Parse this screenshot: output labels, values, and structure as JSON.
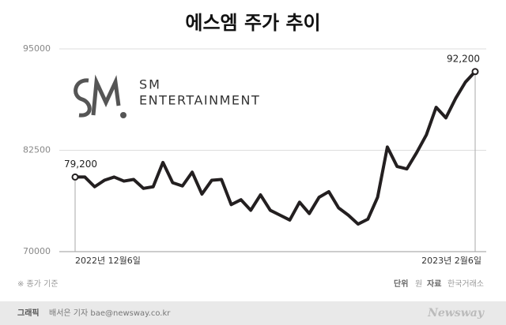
{
  "chart_data": {
    "type": "line",
    "title": "에스엠 주가 추이",
    "categories": [
      "2022년 12월6일",
      null,
      null,
      null,
      null,
      null,
      null,
      null,
      null,
      null,
      null,
      null,
      null,
      null,
      null,
      null,
      null,
      null,
      null,
      null,
      null,
      null,
      null,
      null,
      null,
      null,
      null,
      null,
      null,
      null,
      null,
      null,
      null,
      null,
      null,
      null,
      null,
      null,
      null,
      null,
      null,
      "2023년 2월6일"
    ],
    "series": [
      {
        "color": "#231f20",
        "values": [
          79200,
          79200,
          78000,
          78800,
          79200,
          78700,
          78900,
          77800,
          78000,
          81000,
          78500,
          78100,
          79800,
          77100,
          78800,
          78900,
          75800,
          76400,
          75100,
          77000,
          75100,
          74500,
          73900,
          76100,
          74700,
          76700,
          77400,
          75400,
          74500,
          73400,
          74000,
          76700,
          82900,
          80500,
          80200,
          82200,
          84400,
          87800,
          86500,
          88900,
          90900,
          92200
        ],
        "value_labels": [
          "79,200",
          null,
          null,
          null,
          null,
          null,
          null,
          null,
          null,
          null,
          null,
          null,
          null,
          null,
          null,
          null,
          null,
          null,
          null,
          null,
          null,
          null,
          null,
          null,
          null,
          null,
          null,
          null,
          null,
          null,
          null,
          null,
          null,
          null,
          null,
          null,
          null,
          null,
          null,
          null,
          null,
          "92,200"
        ]
      }
    ],
    "ylim": [
      70000,
      95000
    ],
    "yticks": [
      70000,
      82500,
      95000
    ],
    "grid": true,
    "logo_text": [
      "SM",
      "ENTERTAINMENT"
    ],
    "note": "※ 종가 기준",
    "unit_label": "단위",
    "unit": "원",
    "source_label": "자료",
    "source": "한국거래소",
    "credit_label": "그래픽",
    "credit": "배서은 기자  bae@newsway.co.kr",
    "brand": "Newsway"
  }
}
